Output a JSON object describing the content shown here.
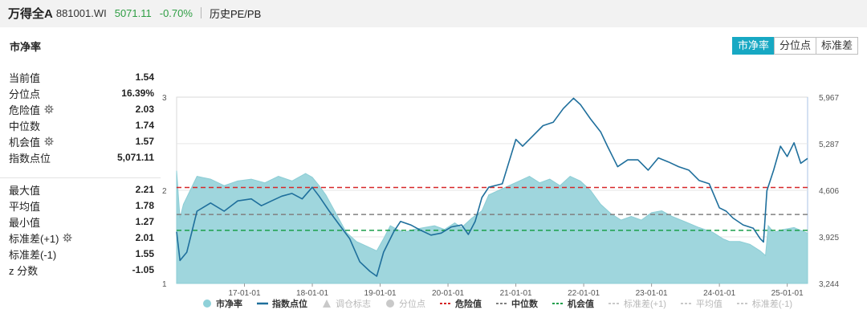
{
  "header": {
    "name": "万得全A",
    "code": "881001.WI",
    "price": "5071.11",
    "change": "-0.70%",
    "subtitle": "历史PE/PB"
  },
  "panel": {
    "title": "市净率",
    "tabs": [
      {
        "label": "市净率",
        "active": true
      },
      {
        "label": "分位点",
        "active": false
      },
      {
        "label": "标准差",
        "active": false
      }
    ]
  },
  "stats": {
    "group1": [
      {
        "label": "当前值",
        "value": "1.54",
        "gear": false
      },
      {
        "label": "分位点",
        "value": "16.39%",
        "gear": false
      },
      {
        "label": "危险值",
        "value": "2.03",
        "gear": true
      },
      {
        "label": "中位数",
        "value": "1.74",
        "gear": false
      },
      {
        "label": "机会值",
        "value": "1.57",
        "gear": true
      },
      {
        "label": "指数点位",
        "value": "5,071.11",
        "gear": false
      }
    ],
    "group2": [
      {
        "label": "最大值",
        "value": "2.21",
        "gear": false
      },
      {
        "label": "平均值",
        "value": "1.78",
        "gear": false
      },
      {
        "label": "最小值",
        "value": "1.27",
        "gear": false
      },
      {
        "label": "标准差(+1)",
        "value": "2.01",
        "gear": true
      },
      {
        "label": "标准差(-1)",
        "value": "1.55",
        "gear": false
      },
      {
        "label": "z 分数",
        "value": "-1.05",
        "gear": false
      }
    ]
  },
  "legend": [
    {
      "label": "市净率",
      "kind": "dot",
      "color": "#8fd1d9",
      "active": true
    },
    {
      "label": "指数点位",
      "kind": "line",
      "color": "#1f6f9c",
      "active": true
    },
    {
      "label": "调仓标志",
      "kind": "triangle",
      "color": "#c9c9c9",
      "active": false
    },
    {
      "label": "分位点",
      "kind": "dot",
      "color": "#c9c9c9",
      "active": false
    },
    {
      "label": "危险值",
      "kind": "dash",
      "color": "#d62728",
      "active": true
    },
    {
      "label": "中位数",
      "kind": "dash",
      "color": "#808080",
      "active": true
    },
    {
      "label": "机会值",
      "kind": "dash",
      "color": "#1a9e4a",
      "active": true
    },
    {
      "label": "标准差(+1)",
      "kind": "dash",
      "color": "#c9c9c9",
      "active": false
    },
    {
      "label": "平均值",
      "kind": "dash",
      "color": "#c9c9c9",
      "active": false
    },
    {
      "label": "标准差(-1)",
      "kind": "dash",
      "color": "#c9c9c9",
      "active": false
    }
  ],
  "chart_data": {
    "type": "area",
    "y_left_ticks": [
      "3",
      "2",
      "1"
    ],
    "y_left_range": [
      1,
      3
    ],
    "y_right_ticks": [
      "5,967",
      "5,287",
      "4,606",
      "3,925",
      "3,244"
    ],
    "y_right_range": [
      3244,
      5967
    ],
    "x_ticks": [
      "17-01-01",
      "18-01-01",
      "19-01-01",
      "20-01-01",
      "21-01-01",
      "22-01-01",
      "23-01-01",
      "24-01-01",
      "25-01-01"
    ],
    "x_range": [
      2016.0,
      2025.3
    ],
    "reference_lines": {
      "danger": 2.03,
      "median": 1.74,
      "opportunity": 1.57
    },
    "series": [
      {
        "name": "市净率",
        "axis": "left",
        "x": [
          2016.0,
          2016.05,
          2016.1,
          2016.3,
          2016.5,
          2016.7,
          2016.9,
          2017.1,
          2017.3,
          2017.5,
          2017.7,
          2017.9,
          2018.0,
          2018.1,
          2018.2,
          2018.35,
          2018.5,
          2018.65,
          2018.8,
          2018.95,
          2019.05,
          2019.15,
          2019.25,
          2019.35,
          2019.5,
          2019.65,
          2019.8,
          2019.95,
          2020.1,
          2020.2,
          2020.35,
          2020.5,
          2020.6,
          2020.75,
          2020.9,
          2021.05,
          2021.2,
          2021.35,
          2021.5,
          2021.65,
          2021.8,
          2021.95,
          2022.1,
          2022.25,
          2022.4,
          2022.55,
          2022.7,
          2022.85,
          2023.0,
          2023.15,
          2023.3,
          2023.5,
          2023.7,
          2023.9,
          2024.05,
          2024.15,
          2024.3,
          2024.45,
          2024.6,
          2024.68,
          2024.72,
          2024.8,
          2024.95,
          2025.1,
          2025.3
        ],
        "values": [
          2.21,
          1.7,
          1.85,
          2.15,
          2.12,
          2.05,
          2.1,
          2.12,
          2.08,
          2.15,
          2.1,
          2.18,
          2.14,
          2.05,
          1.95,
          1.75,
          1.55,
          1.45,
          1.4,
          1.35,
          1.48,
          1.62,
          1.58,
          1.55,
          1.58,
          1.6,
          1.62,
          1.58,
          1.65,
          1.6,
          1.7,
          1.78,
          1.95,
          2.0,
          2.05,
          2.1,
          2.15,
          2.08,
          2.12,
          2.05,
          2.15,
          2.1,
          2.0,
          1.85,
          1.75,
          1.68,
          1.72,
          1.68,
          1.76,
          1.78,
          1.72,
          1.66,
          1.6,
          1.55,
          1.48,
          1.45,
          1.45,
          1.42,
          1.35,
          1.3,
          1.62,
          1.55,
          1.58,
          1.6,
          1.54
        ]
      },
      {
        "name": "指数点位",
        "axis": "right",
        "x": [
          2016.0,
          2016.05,
          2016.15,
          2016.3,
          2016.5,
          2016.7,
          2016.9,
          2017.1,
          2017.25,
          2017.4,
          2017.55,
          2017.7,
          2017.85,
          2018.0,
          2018.1,
          2018.25,
          2018.4,
          2018.55,
          2018.7,
          2018.85,
          2018.95,
          2019.05,
          2019.2,
          2019.3,
          2019.45,
          2019.6,
          2019.75,
          2019.9,
          2020.05,
          2020.2,
          2020.3,
          2020.4,
          2020.5,
          2020.6,
          2020.8,
          2021.0,
          2021.1,
          2021.25,
          2021.4,
          2021.55,
          2021.7,
          2021.85,
          2021.95,
          2022.1,
          2022.25,
          2022.35,
          2022.5,
          2022.65,
          2022.8,
          2022.95,
          2023.1,
          2023.25,
          2023.4,
          2023.55,
          2023.7,
          2023.85,
          2024.0,
          2024.1,
          2024.2,
          2024.35,
          2024.5,
          2024.6,
          2024.65,
          2024.7,
          2024.8,
          2024.9,
          2025.0,
          2025.1,
          2025.2,
          2025.3
        ],
        "values": [
          4000,
          3580,
          3700,
          4300,
          4420,
          4300,
          4450,
          4480,
          4380,
          4450,
          4520,
          4560,
          4480,
          4650,
          4520,
          4300,
          4100,
          3900,
          3560,
          3420,
          3350,
          3700,
          4000,
          4150,
          4100,
          4020,
          3950,
          3980,
          4070,
          4100,
          3960,
          4150,
          4500,
          4650,
          4700,
          5350,
          5250,
          5400,
          5550,
          5600,
          5800,
          5950,
          5860,
          5650,
          5460,
          5250,
          4950,
          5050,
          5050,
          4900,
          5080,
          5020,
          4950,
          4900,
          4750,
          4700,
          4350,
          4300,
          4200,
          4100,
          4050,
          3900,
          3850,
          4600,
          4900,
          5250,
          5100,
          5300,
          5000,
          5071
        ]
      }
    ]
  }
}
